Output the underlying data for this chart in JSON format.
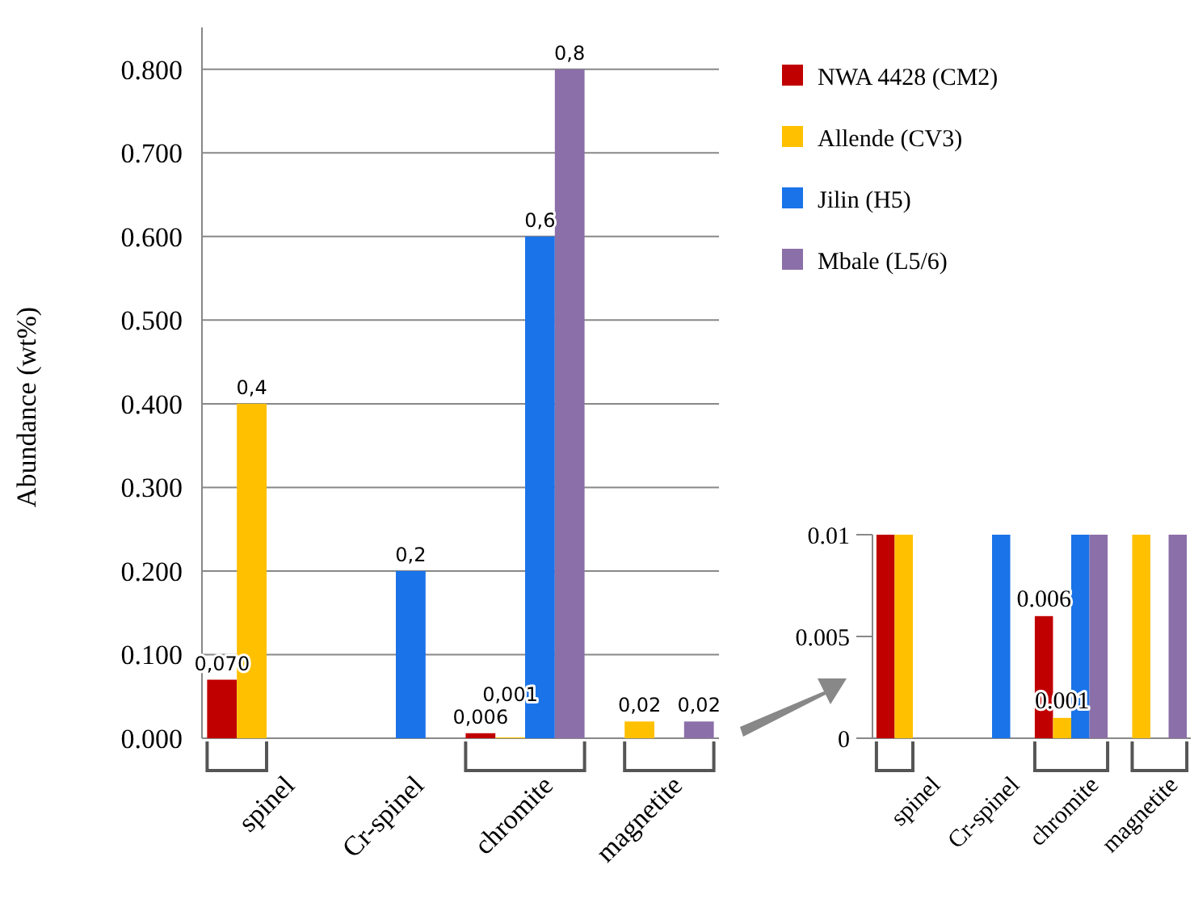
{
  "chart_data": [
    {
      "type": "bar",
      "ylabel": "Abundance (wt%)",
      "categories": [
        "spinel",
        "Cr-spinel",
        "chromite",
        "magnetite"
      ],
      "ylim": [
        0,
        0.85
      ],
      "yticks": [
        {
          "value": 0,
          "label": "0.000"
        },
        {
          "value": 0.1,
          "label": "0.100"
        },
        {
          "value": 0.2,
          "label": "0.200"
        },
        {
          "value": 0.3,
          "label": "0.300"
        },
        {
          "value": 0.4,
          "label": "0.400"
        },
        {
          "value": 0.5,
          "label": "0.500"
        },
        {
          "value": 0.6,
          "label": "0.600"
        },
        {
          "value": 0.7,
          "label": "0.700"
        },
        {
          "value": 0.8,
          "label": "0.800"
        }
      ],
      "grid": "y",
      "legend": "top right",
      "series": [
        {
          "name": "NWA 4428 (CM2)",
          "color": "#c00000",
          "values": [
            0.07,
            null,
            0.006,
            null
          ],
          "value_labels": [
            "0,070",
            null,
            "0,006",
            null
          ]
        },
        {
          "name": "Allende (CV3)",
          "color": "#ffc000",
          "values": [
            0.4,
            null,
            0.001,
            0.02
          ],
          "value_labels": [
            "0,4",
            null,
            "0,001",
            "0,02"
          ]
        },
        {
          "name": "Jilin (H5)",
          "color": "#1a73e8",
          "values": [
            null,
            0.2,
            0.6,
            null
          ],
          "value_labels": [
            null,
            "0,2",
            "0,6",
            null
          ]
        },
        {
          "name": "Mbale (L5/6)",
          "color": "#8b6fa9",
          "values": [
            null,
            null,
            0.8,
            0.02
          ],
          "value_labels": [
            null,
            null,
            "0,8",
            "0,02"
          ]
        }
      ]
    },
    {
      "type": "bar",
      "categories": [
        "spinel",
        "Cr-spinel",
        "chromite",
        "magnetite"
      ],
      "ylim": [
        0,
        0.01
      ],
      "yticks": [
        0,
        0.005,
        0.01
      ],
      "series": [
        {
          "color": "#c00000",
          "values": [
            0.01,
            null,
            0.006,
            null
          ],
          "value_labels": [
            null,
            null,
            "0.006",
            null
          ]
        },
        {
          "color": "#ffc000",
          "values": [
            0.01,
            null,
            0.001,
            0.01
          ],
          "value_labels": [
            null,
            null,
            "0.001",
            null
          ]
        },
        {
          "color": "#1a73e8",
          "values": [
            null,
            0.01,
            0.01,
            null
          ],
          "value_labels": [
            null,
            null,
            null,
            null
          ]
        },
        {
          "color": "#8b6fa9",
          "values": [
            null,
            null,
            0.01,
            0.01
          ],
          "value_labels": [
            null,
            null,
            null,
            null
          ]
        }
      ]
    }
  ]
}
